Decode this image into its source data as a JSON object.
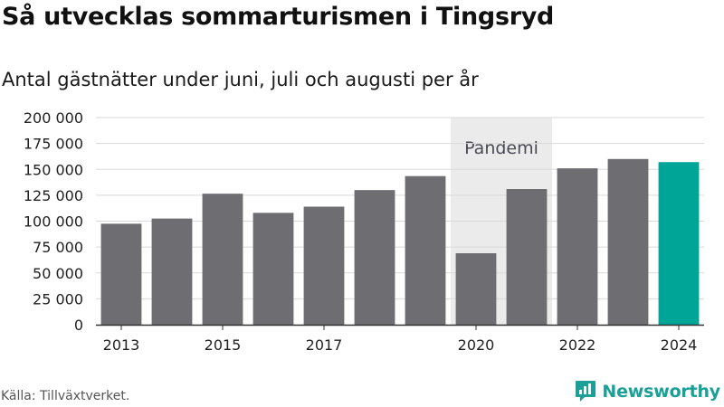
{
  "title": "Så utvecklas sommarturismen i Tingsryd",
  "subtitle": "Antal gästnätter under juni, juli och augusti per år",
  "source": "Källa: Tillväxtverket.",
  "brand": {
    "name": "Newsworthy",
    "icon": "newsworthy-logo-icon"
  },
  "colors": {
    "bar": "#6d6d72",
    "highlight": "#00a597",
    "band": "#ebebeb",
    "grid": "#d9d9d9",
    "axis": "#333333"
  },
  "chart_data": {
    "type": "bar",
    "title": "Så utvecklas sommarturismen i Tingsryd",
    "subtitle": "Antal gästnätter under juni, juli och augusti per år",
    "categories": [
      2013,
      2014,
      2015,
      2016,
      2017,
      2018,
      2019,
      2020,
      2021,
      2022,
      2023,
      2024
    ],
    "values": [
      97500,
      102500,
      126500,
      108000,
      114000,
      130000,
      143500,
      69000,
      131000,
      151000,
      160000,
      157000
    ],
    "highlight_category": 2024,
    "x_tick_labels": [
      "2013",
      "2015",
      "2017",
      "2020",
      "2022",
      "2024"
    ],
    "y_ticks": [
      0,
      25000,
      50000,
      75000,
      100000,
      125000,
      150000,
      175000,
      200000
    ],
    "y_tick_labels": [
      "0",
      "25 000",
      "50 000",
      "75 000",
      "100 000",
      "125 000",
      "150 000",
      "175 000",
      "200 000"
    ],
    "ylim": [
      0,
      200000
    ],
    "grid": true,
    "annotation": {
      "label": "Pandemi",
      "from": 2020,
      "to": 2021
    },
    "xlabel": "",
    "ylabel": ""
  }
}
